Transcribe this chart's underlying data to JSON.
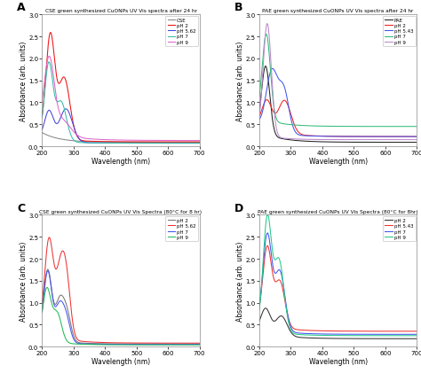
{
  "panel_A": {
    "title": "CSE green synthesized CuONPs UV Vis spectra after 24 hr",
    "xlabel": "Wavelength (nm)",
    "ylabel": "Absorbance (arb. units)",
    "ylim": [
      0,
      3.0
    ],
    "xlim": [
      200,
      700
    ],
    "legend": [
      "CSE",
      "pH 2",
      "pH 5.62",
      "pH 7",
      "pH 9"
    ],
    "colors": [
      "#888888",
      "#EE1111",
      "#4444DD",
      "#33BBAA",
      "#DD66CC"
    ]
  },
  "panel_B": {
    "title": "PAE green synthesized CuONPs UV Vis spectra after 24 hr",
    "xlabel": "Wavelength (nm)",
    "ylabel": "Absorbance (arb. units)",
    "ylim": [
      0,
      3.0
    ],
    "xlim": [
      200,
      700
    ],
    "legend": [
      "PAE",
      "pH 2",
      "pH 5.43",
      "pH 7",
      "pH 9"
    ],
    "colors": [
      "#222222",
      "#EE2222",
      "#4455EE",
      "#33BB77",
      "#BB88CC"
    ]
  },
  "panel_C": {
    "title": "CSE green synthesized CuONPs UV Vis Spectra (80°C for 8 hr)",
    "xlabel": "Wavelength (nm)",
    "ylabel": "Absorbance (arb. units)",
    "ylim": [
      0,
      3.0
    ],
    "xlim": [
      200,
      700
    ],
    "legend": [
      "pH 2",
      "pH 5.62",
      "pH 7",
      "pH 9"
    ],
    "colors": [
      "#777777",
      "#EE3333",
      "#4455EE",
      "#22BB55"
    ]
  },
  "panel_D": {
    "title": "PAE green synthesized CuONPs UV Vis Spectra (80°C for 8hr)",
    "xlabel": "Wavelength (nm)",
    "ylabel": "Absorbance (arb. units)",
    "ylim": [
      0,
      3.0
    ],
    "xlim": [
      200,
      700
    ],
    "legend": [
      "pH 2",
      "pH 5.43",
      "pH 7",
      "pH 9"
    ],
    "colors": [
      "#333333",
      "#EE3333",
      "#4455EE",
      "#22CC88"
    ]
  },
  "background": "#FFFFFF"
}
